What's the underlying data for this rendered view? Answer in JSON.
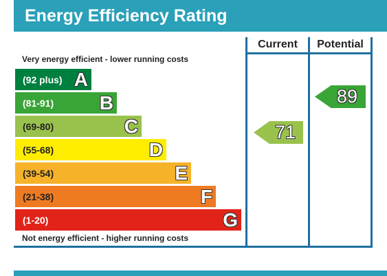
{
  "title": "Energy Efficiency Rating",
  "columns": {
    "current": "Current",
    "potential": "Potential"
  },
  "top_note": "Very energy efficient - lower running costs",
  "bottom_note": "Not energy efficient - higher running costs",
  "bands": [
    {
      "range": "(92 plus)",
      "letter": "A",
      "color": "#00803f",
      "text_color": "#ffffff"
    },
    {
      "range": "(81-91)",
      "letter": "B",
      "color": "#3aa537",
      "text_color": "#ffffff"
    },
    {
      "range": "(69-80)",
      "letter": "C",
      "color": "#99c24d",
      "text_color": "#222222"
    },
    {
      "range": "(55-68)",
      "letter": "D",
      "color": "#ffed00",
      "text_color": "#222222"
    },
    {
      "range": "(39-54)",
      "letter": "E",
      "color": "#f6b229",
      "text_color": "#222222"
    },
    {
      "range": "(21-38)",
      "letter": "F",
      "color": "#ee7b22",
      "text_color": "#222222"
    },
    {
      "range": "(1-20)",
      "letter": "G",
      "color": "#e2231a",
      "text_color": "#ffffff"
    }
  ],
  "current": {
    "value": "71",
    "band": "C",
    "color": "#99c24d"
  },
  "potential": {
    "value": "89",
    "band": "B",
    "color": "#3aa537"
  }
}
